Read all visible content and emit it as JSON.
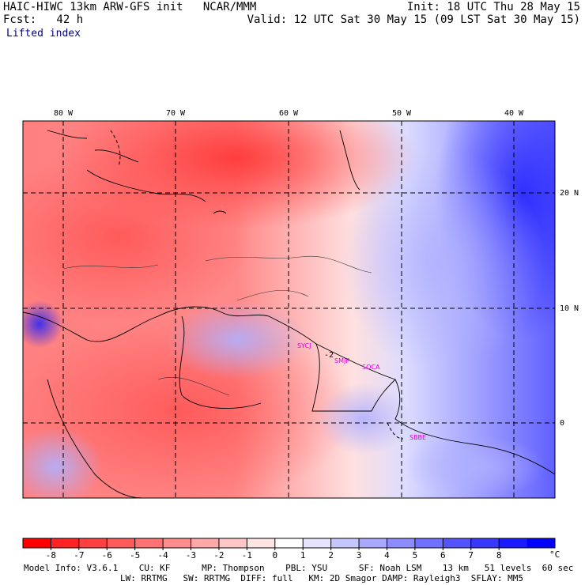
{
  "header": {
    "title": "HAIC-HIWC 13km ARW-GFS init   NCAR/MMM",
    "forecast": "Fcst:   42 h",
    "init": "Init: 18 UTC Thu 28 May 15",
    "valid": "Valid: 12 UTC Sat 30 May 15 (09 LST Sat 30 May 15)",
    "field": "Lifted index"
  },
  "map": {
    "lon_labels": [
      "80 W",
      "70 W",
      "60 W",
      "50 W",
      "40 W"
    ],
    "lat_labels": [
      "20 N",
      "10 N",
      "0"
    ],
    "stations": [
      "SYCJ",
      "SMJP",
      "SOCA",
      "SBBE"
    ],
    "contour_label": "-2"
  },
  "colorbar": {
    "ticks": [
      "-8",
      "-7",
      "-6",
      "-5",
      "-4",
      "-3",
      "-2",
      "-1",
      "0",
      "1",
      "2",
      "3",
      "4",
      "5",
      "6",
      "7",
      "8"
    ],
    "unit": "°C",
    "colors": [
      "#ff0000",
      "#ff2222",
      "#ff4040",
      "#ff5a5a",
      "#ff7272",
      "#ff8c8c",
      "#ffa8a8",
      "#ffc6c6",
      "#ffe4e4",
      "#ffffff",
      "#e4e4ff",
      "#c6c6ff",
      "#a8a8ff",
      "#8c8cff",
      "#7070ff",
      "#5454ff",
      "#3838ff",
      "#1a1aff",
      "#0000ff"
    ]
  },
  "footer": {
    "line1": "Model Info: V3.6.1    CU: KF      MP: Thompson    PBL: YSU      SF: Noah LSM    13 km   51 levels  60 sec",
    "line2": "LW: RRTMG   SW: RRTMG  DIFF: full   KM: 2D Smagor DAMP: Rayleigh3  SFLAY: MM5"
  }
}
